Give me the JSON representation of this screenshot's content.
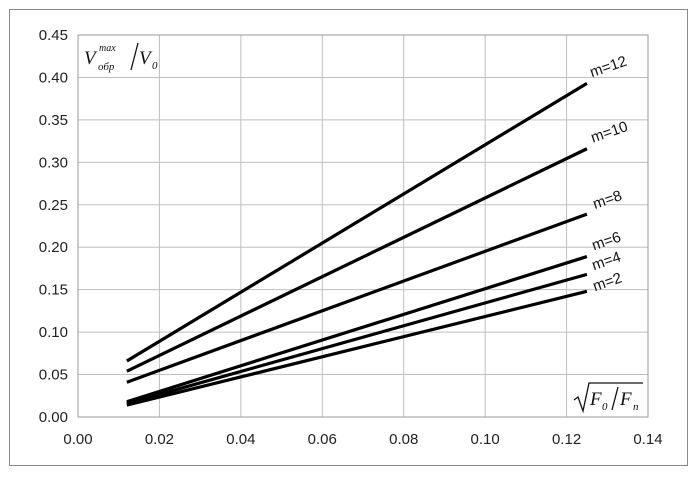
{
  "chart_data": {
    "type": "line",
    "x": [
      0.012,
      0.125
    ],
    "series": [
      {
        "name": "m=2",
        "values": [
          0.014,
          0.148
        ]
      },
      {
        "name": "m=4",
        "values": [
          0.016,
          0.168
        ]
      },
      {
        "name": "m=6",
        "values": [
          0.018,
          0.189
        ]
      },
      {
        "name": "m=8",
        "values": [
          0.041,
          0.239
        ]
      },
      {
        "name": "m=10",
        "values": [
          0.054,
          0.316
        ]
      },
      {
        "name": "m=12",
        "values": [
          0.066,
          0.393
        ]
      }
    ],
    "xlim": [
      0.0,
      0.14
    ],
    "ylim": [
      0.0,
      0.45
    ],
    "xticks": [
      "0.00",
      "0.02",
      "0.04",
      "0.06",
      "0.08",
      "0.10",
      "0.12",
      "0.14"
    ],
    "yticks": [
      "0.00",
      "0.05",
      "0.10",
      "0.15",
      "0.20",
      "0.25",
      "0.30",
      "0.35",
      "0.40",
      "0.45"
    ],
    "grid": true,
    "legend": "inline labels at line ends",
    "line_color": "#000000",
    "grid_color": "#bfbfbf"
  },
  "axis_labels": {
    "y": {
      "v": "V",
      "sub": "обр",
      "sup": "max",
      "den": "V",
      "den_sub": "0"
    },
    "x": {
      "num": "F",
      "num_sub": "0",
      "den": "F",
      "den_sub": "п"
    }
  }
}
